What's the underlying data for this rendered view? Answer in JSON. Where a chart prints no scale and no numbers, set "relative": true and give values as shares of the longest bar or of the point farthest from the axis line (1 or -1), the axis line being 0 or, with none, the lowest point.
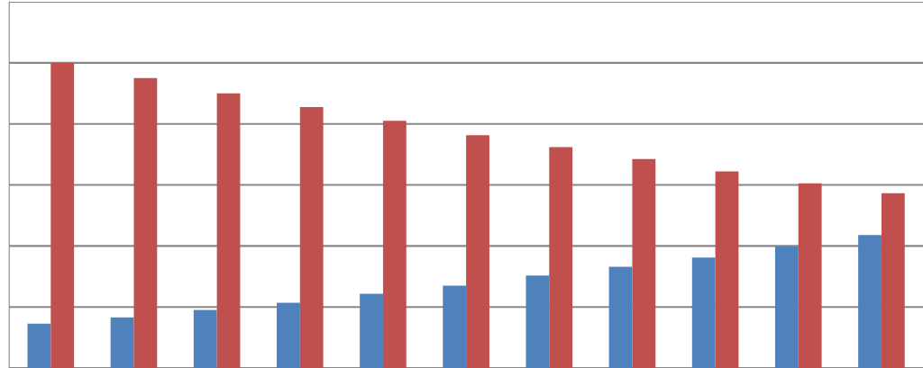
{
  "chart_data": {
    "type": "bar",
    "relative": true,
    "grid": "y",
    "categories": [
      null,
      null,
      null,
      null,
      null,
      null,
      null,
      null,
      null,
      null,
      null
    ],
    "series": [
      {
        "color": "#4f81bd",
        "values": [
          0.145,
          0.166,
          0.19,
          0.214,
          0.243,
          0.27,
          0.303,
          0.332,
          0.362,
          0.398,
          0.436
        ]
      },
      {
        "color": "#c0504d",
        "values": [
          1,
          0.95,
          0.9,
          0.855,
          0.81,
          0.763,
          0.724,
          0.685,
          0.644,
          0.605,
          0.573
        ]
      }
    ]
  }
}
